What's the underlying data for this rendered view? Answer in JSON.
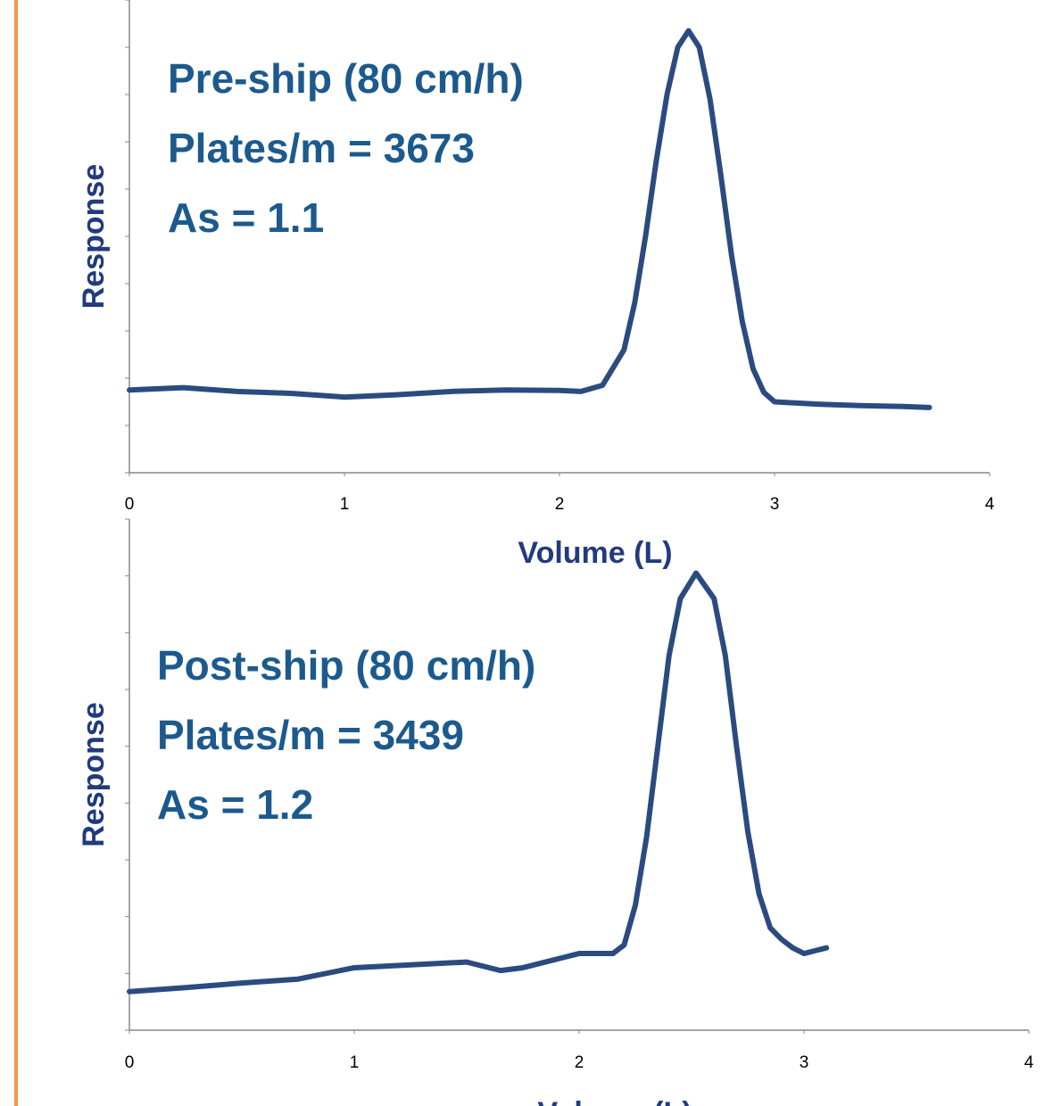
{
  "chart_data": [
    {
      "type": "line",
      "annotations": [
        "Pre-ship (80 cm/h)",
        "Plates/m = 3673",
        "As = 1.1"
      ],
      "x_label": "Volume (L)",
      "y_label": "Response",
      "x": [
        0,
        0.25,
        0.5,
        0.75,
        1.0,
        1.25,
        1.5,
        1.75,
        2.0,
        2.1,
        2.2,
        2.3,
        2.35,
        2.4,
        2.45,
        2.5,
        2.55,
        2.6,
        2.65,
        2.7,
        2.75,
        2.8,
        2.85,
        2.9,
        2.95,
        3.0,
        3.2,
        3.4,
        3.6,
        3.72
      ],
      "values": [
        1.75,
        1.8,
        1.72,
        1.68,
        1.6,
        1.65,
        1.72,
        1.75,
        1.74,
        1.72,
        1.85,
        2.6,
        3.6,
        5.0,
        6.6,
        8.0,
        9.0,
        9.35,
        9.0,
        7.9,
        6.3,
        4.6,
        3.2,
        2.2,
        1.7,
        1.5,
        1.45,
        1.42,
        1.4,
        1.38
      ],
      "color": "#2b4b80",
      "xlim": [
        0,
        4
      ],
      "xticks": [
        0,
        1,
        2,
        3,
        4
      ],
      "ylim": [
        0,
        10
      ],
      "yticks": [
        0,
        1,
        2,
        3,
        4,
        5,
        6,
        7,
        8,
        9,
        10
      ]
    },
    {
      "type": "line",
      "annotations": [
        "Post-ship (80 cm/h)",
        "Plates/m = 3439",
        "As = 1.2"
      ],
      "x_label": "Volume (L)",
      "y_label": "Response",
      "x": [
        0,
        0.25,
        0.5,
        0.75,
        1.0,
        1.25,
        1.5,
        1.65,
        1.75,
        2.0,
        2.15,
        2.2,
        2.25,
        2.3,
        2.35,
        2.4,
        2.45,
        2.52,
        2.6,
        2.65,
        2.7,
        2.75,
        2.8,
        2.85,
        2.9,
        2.95,
        3.0,
        3.05,
        3.1
      ],
      "values": [
        0.68,
        0.75,
        0.83,
        0.9,
        1.1,
        1.15,
        1.2,
        1.05,
        1.1,
        1.35,
        1.35,
        1.5,
        2.2,
        3.4,
        5.0,
        6.6,
        7.6,
        8.05,
        7.6,
        6.6,
        5.0,
        3.5,
        2.4,
        1.8,
        1.6,
        1.45,
        1.35,
        1.4,
        1.45
      ],
      "color": "#2b4b80",
      "xlim": [
        0,
        4
      ],
      "xticks": [
        0,
        1,
        2,
        3,
        4
      ],
      "ylim": [
        0,
        9
      ],
      "yticks": [
        0,
        1,
        2,
        3,
        4,
        5,
        6,
        7,
        8,
        9
      ]
    }
  ]
}
